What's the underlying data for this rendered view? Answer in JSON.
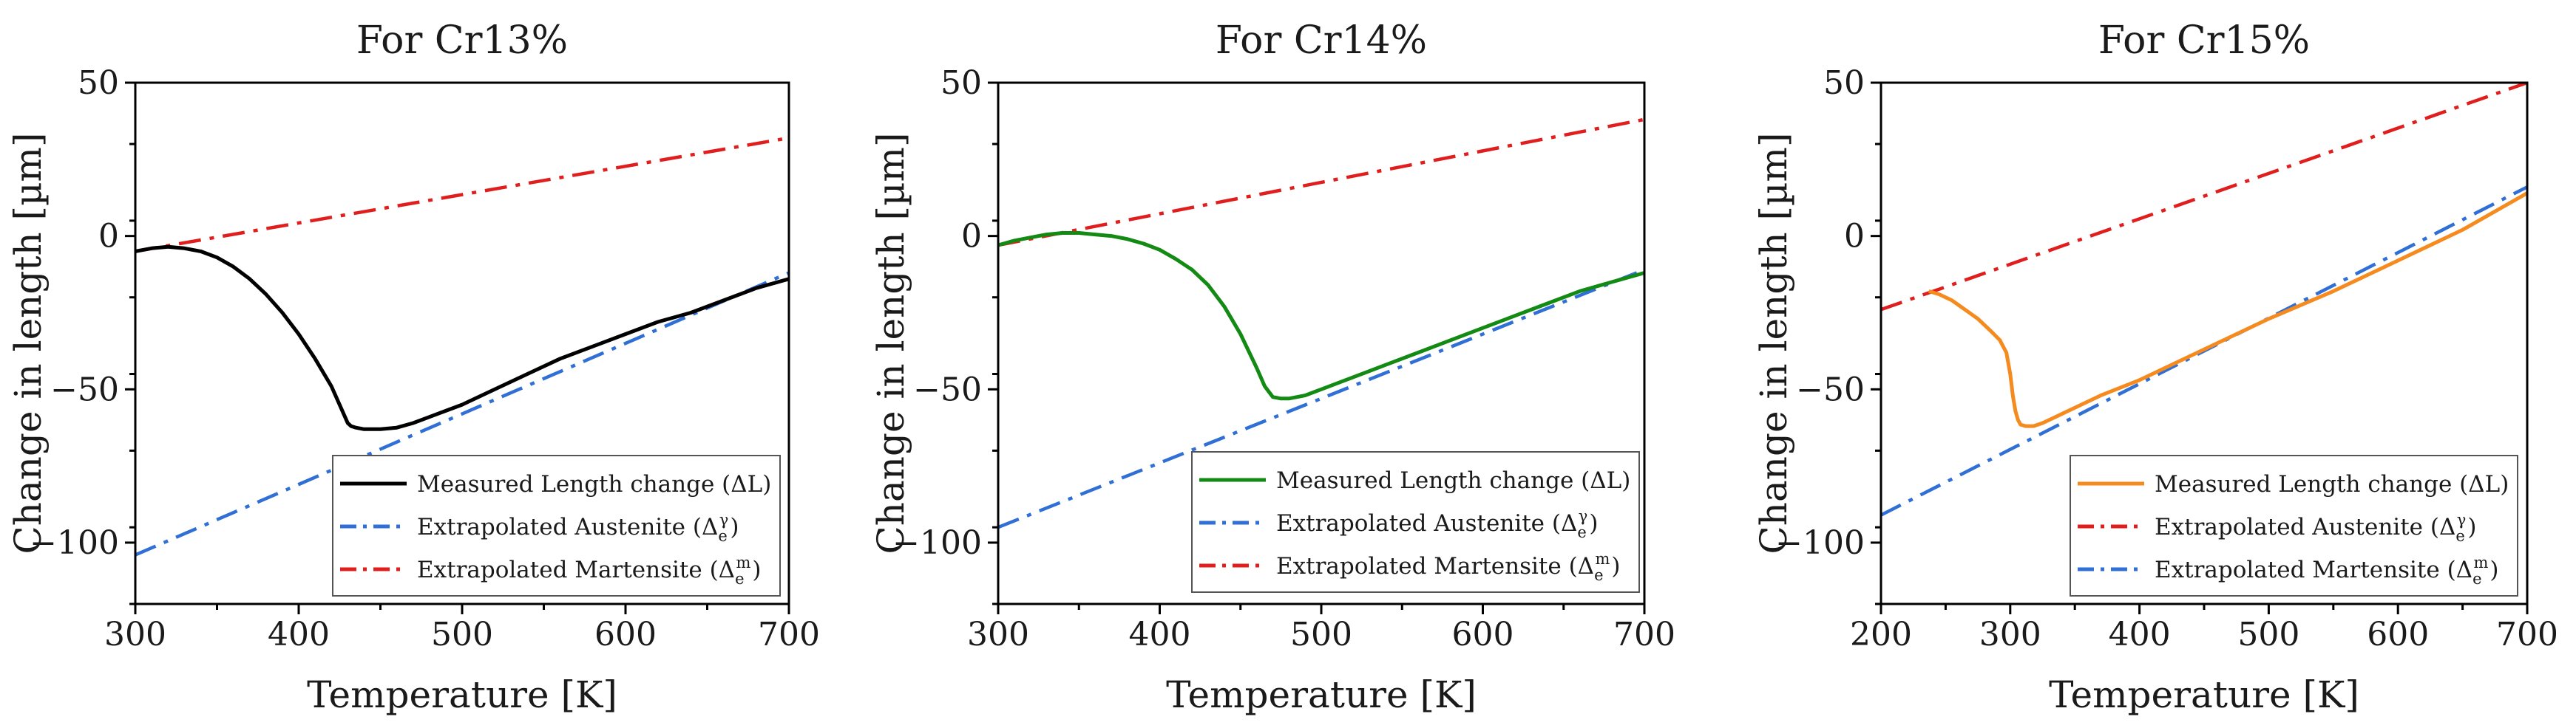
{
  "chart_data": [
    {
      "type": "line",
      "title": "For Cr13%",
      "xlabel": "Temperature [K]",
      "ylabel": "Change in length [µm]",
      "xlim": [
        300,
        700
      ],
      "ylim": [
        -120,
        50
      ],
      "xticks": [
        300,
        400,
        500,
        600,
        700
      ],
      "xtick_labels": [
        "300",
        "400",
        "500",
        "600",
        "700"
      ],
      "yticks": [
        50,
        0,
        -50,
        -100
      ],
      "ytick_labels": [
        "50",
        "0",
        "−50",
        "−100"
      ],
      "grid": false,
      "legend_position": "bottom-right",
      "series": [
        {
          "name": "Measured Length change (ΔL)",
          "color": "#000000",
          "style": "solid",
          "x": [
            300,
            310,
            320,
            330,
            340,
            350,
            360,
            370,
            380,
            390,
            400,
            410,
            420,
            425,
            430,
            432,
            435,
            440,
            445,
            450,
            460,
            470,
            480,
            490,
            500,
            520,
            540,
            560,
            580,
            600,
            620,
            640,
            660,
            680,
            700
          ],
          "y": [
            -5,
            -4,
            -3.5,
            -4,
            -5,
            -7,
            -10,
            -14,
            -19,
            -25,
            -32,
            -40,
            -49,
            -55,
            -61,
            -62,
            -62.5,
            -63,
            -63,
            -63,
            -62.5,
            -61,
            -59,
            -57,
            -55,
            -50,
            -45,
            -40,
            -36,
            -32,
            -28,
            -25,
            -21,
            -17,
            -14
          ]
        },
        {
          "name": "Extrapolated Austenite (Δ",
          "sub": "e",
          "sup": "γ",
          "name_end": ")",
          "color": "#2f6fd6",
          "style": "dashdot",
          "x": [
            300,
            700
          ],
          "y": [
            -104,
            -12
          ]
        },
        {
          "name": "Extrapolated Martensite (Δ",
          "sub": "e",
          "sup": "m",
          "name_end": ")",
          "color": "#e01e1e",
          "style": "dashdot",
          "x": [
            300,
            700
          ],
          "y": [
            -5,
            32
          ]
        }
      ]
    },
    {
      "type": "line",
      "title": "For Cr14%",
      "xlabel": "Temperature [K]",
      "ylabel": "Change in length [µm]",
      "xlim": [
        300,
        700
      ],
      "ylim": [
        -120,
        50
      ],
      "xticks": [
        300,
        400,
        500,
        600,
        700
      ],
      "xtick_labels": [
        "300",
        "400",
        "500",
        "600",
        "700"
      ],
      "yticks": [
        50,
        0,
        -50,
        -100
      ],
      "ytick_labels": [
        "50",
        "0",
        "−50",
        "−100"
      ],
      "grid": false,
      "legend_position": "bottom-right",
      "series": [
        {
          "name": "Measured Length change (ΔL)",
          "color": "#138a13",
          "style": "solid",
          "x": [
            300,
            310,
            320,
            330,
            340,
            350,
            360,
            370,
            380,
            390,
            400,
            410,
            420,
            430,
            440,
            450,
            460,
            465,
            470,
            475,
            480,
            490,
            500,
            520,
            540,
            560,
            580,
            600,
            620,
            640,
            660,
            680,
            700
          ],
          "y": [
            -3,
            -1.5,
            -0.5,
            0.5,
            1,
            1,
            0.5,
            0,
            -1,
            -2.5,
            -4.5,
            -7.5,
            -11,
            -16,
            -23,
            -32,
            -43,
            -49,
            -52.5,
            -53,
            -53,
            -52,
            -50,
            -46,
            -42,
            -38,
            -34,
            -30,
            -26,
            -22,
            -18,
            -15,
            -12
          ]
        },
        {
          "name": "Extrapolated Austenite (Δ",
          "sub": "e",
          "sup": "γ",
          "name_end": ")",
          "color": "#2f6fd6",
          "style": "dashdot",
          "x": [
            300,
            700
          ],
          "y": [
            -95,
            -11
          ]
        },
        {
          "name": "Extrapolated Martensite (Δ",
          "sub": "e",
          "sup": "m",
          "name_end": ")",
          "color": "#e01e1e",
          "style": "dashdot",
          "x": [
            300,
            700
          ],
          "y": [
            -3,
            38
          ]
        }
      ]
    },
    {
      "type": "line",
      "title": "For Cr15%",
      "xlabel": "Temperature [K]",
      "ylabel": "Change in length [µm]",
      "xlim": [
        200,
        700
      ],
      "ylim": [
        -120,
        50
      ],
      "xticks": [
        200,
        300,
        400,
        500,
        600,
        700
      ],
      "xtick_labels": [
        "200",
        "300",
        "400",
        "500",
        "600",
        "700"
      ],
      "yticks": [
        50,
        0,
        -50,
        -100
      ],
      "ytick_labels": [
        "50",
        "0",
        "−50",
        "−100"
      ],
      "grid": false,
      "legend_position": "bottom-right",
      "series": [
        {
          "name": "Measured Length change (ΔL)",
          "color": "#f58a1f",
          "style": "solid",
          "x": [
            237,
            245,
            255,
            265,
            275,
            285,
            292,
            297,
            300,
            302,
            304,
            306,
            308,
            312,
            318,
            325,
            335,
            350,
            370,
            400,
            450,
            500,
            550,
            600,
            650,
            700
          ],
          "y": [
            -18,
            -19,
            -21,
            -24,
            -27,
            -31,
            -34,
            -38,
            -45,
            -52,
            -57,
            -60,
            -61.5,
            -62,
            -62,
            -61,
            -59,
            -56,
            -52,
            -47,
            -37,
            -27,
            -18,
            -8,
            2,
            14
          ]
        },
        {
          "name": "Extrapolated Austenite (Δ",
          "sub": "e",
          "sup": "γ",
          "name_end": ")",
          "color": "#e01e1e",
          "style": "dashdot",
          "x": [
            200,
            700
          ],
          "y": [
            -24,
            50
          ]
        },
        {
          "name": "Extrapolated Martensite (Δ",
          "sub": "e",
          "sup": "m",
          "name_end": ")",
          "color": "#2f6fd6",
          "style": "dashdot",
          "x": [
            200,
            700
          ],
          "y": [
            -91,
            16
          ]
        }
      ]
    }
  ]
}
